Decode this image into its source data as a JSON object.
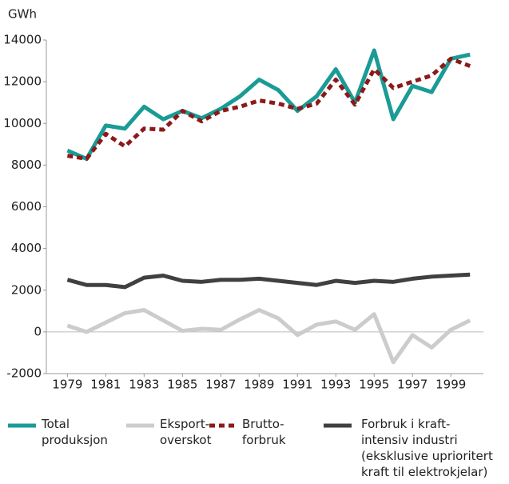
{
  "chart_data": {
    "type": "line",
    "y_unit": "GWh",
    "x": [
      1979,
      1980,
      1981,
      1982,
      1983,
      1984,
      1985,
      1986,
      1987,
      1988,
      1989,
      1990,
      1991,
      1992,
      1993,
      1994,
      1995,
      1996,
      1997,
      1998,
      1999,
      2000
    ],
    "xlim": [
      1977.9,
      2000.7
    ],
    "xticks": [
      1979,
      1981,
      1983,
      1985,
      1987,
      1989,
      1991,
      1993,
      1995,
      1997,
      1999
    ],
    "ylim": [
      -2000,
      14000
    ],
    "yticks": [
      -2000,
      0,
      2000,
      4000,
      6000,
      8000,
      10000,
      12000,
      14000
    ],
    "grid": false,
    "legend": "bottom",
    "series": [
      {
        "name": "Total\nproduksjon",
        "color": "#1a9b96",
        "dash": false,
        "values": [
          8700,
          8300,
          9900,
          9750,
          10800,
          10200,
          10600,
          10250,
          10700,
          11300,
          12100,
          11600,
          10600,
          11300,
          12600,
          11000,
          13500,
          10200,
          11800,
          11500,
          13100,
          13300
        ]
      },
      {
        "name": "Eksport-\noverskot",
        "color": "#cccccc",
        "dash": false,
        "values": [
          300,
          0,
          450,
          900,
          1050,
          550,
          50,
          150,
          100,
          600,
          1050,
          650,
          -150,
          350,
          500,
          100,
          850,
          -1450,
          -150,
          -750,
          100,
          550
        ]
      },
      {
        "name": "Brutto-\nforbruk",
        "color": "#8b1a1a",
        "dash": true,
        "values": [
          8450,
          8300,
          9500,
          8900,
          9750,
          9700,
          10600,
          10100,
          10600,
          10800,
          11100,
          10950,
          10700,
          10950,
          12100,
          10900,
          12600,
          11700,
          12000,
          12300,
          13100,
          12750
        ]
      },
      {
        "name": "Forbruk i kraft-\nintensiv industri\n(eksklusive uprioritert\nkraft til elektrokjelar)",
        "color": "#404040",
        "dash": false,
        "values": [
          2500,
          2250,
          2250,
          2150,
          2600,
          2700,
          2450,
          2400,
          2500,
          2500,
          2550,
          2450,
          2350,
          2250,
          2450,
          2350,
          2450,
          2400,
          2550,
          2650,
          2700,
          2750
        ]
      }
    ]
  }
}
